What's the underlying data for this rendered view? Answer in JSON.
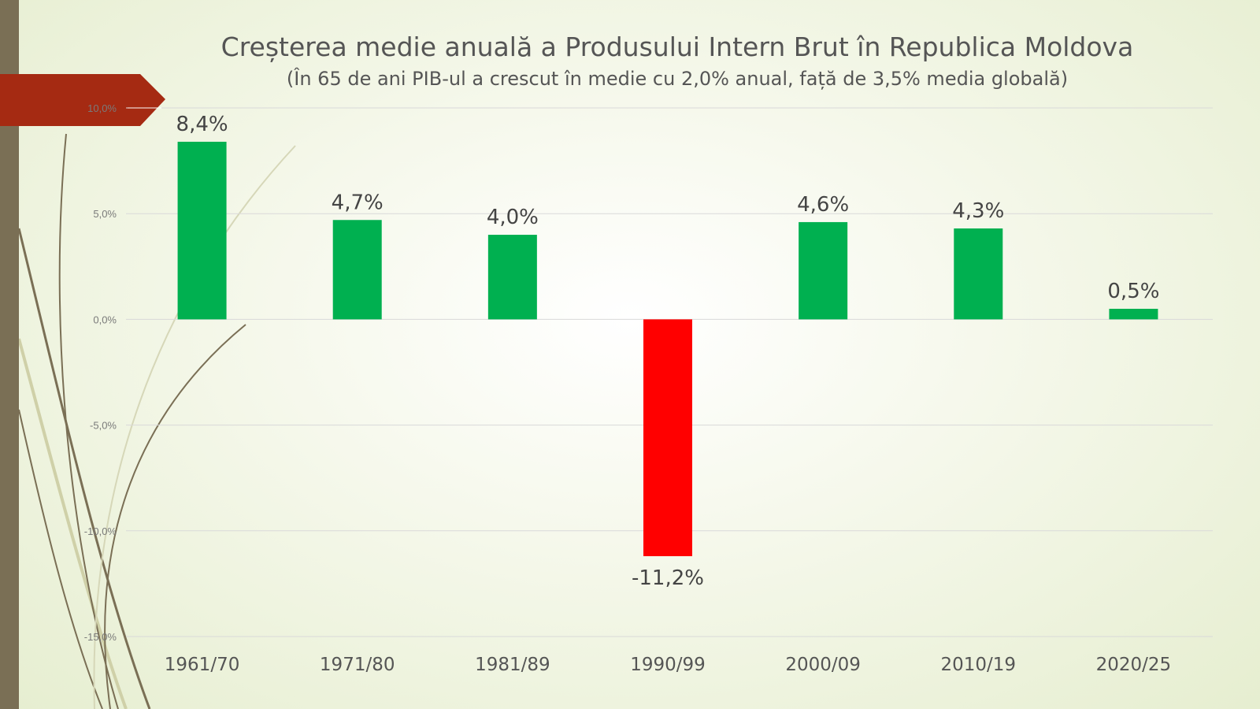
{
  "colors": {
    "positive": "#00b050",
    "negative": "#ff0000",
    "arrow": "#a52a12",
    "left_bar": "#7a6f55",
    "grid": "#d9d9d9"
  },
  "chart_data": {
    "type": "bar",
    "title": "Creșterea medie anuală a Produsului Intern Brut în Republica Moldova",
    "subtitle": "(În 65 de ani PIB-ul a crescut în medie cu 2,0% anual, față de 3,5% media globală)",
    "categories": [
      "1961/70",
      "1971/80",
      "1981/89",
      "1990/99",
      "2000/09",
      "2010/19",
      "2020/25"
    ],
    "values": [
      8.4,
      4.7,
      4.0,
      -11.2,
      4.6,
      4.3,
      0.5
    ],
    "value_labels": [
      "8,4%",
      "4,7%",
      "4,0%",
      "-11,2%",
      "4,6%",
      "4,3%",
      "0,5%"
    ],
    "ylim": [
      -15,
      10
    ],
    "yticks": [
      10,
      5,
      0,
      -5,
      -10,
      -15
    ],
    "ytick_labels": [
      "10,0%",
      "5,0%",
      "0,0%",
      "-5,0%",
      "-10,0%",
      "-15,0%"
    ],
    "xlabel": "",
    "ylabel": "",
    "grid": true,
    "legend": "none"
  }
}
